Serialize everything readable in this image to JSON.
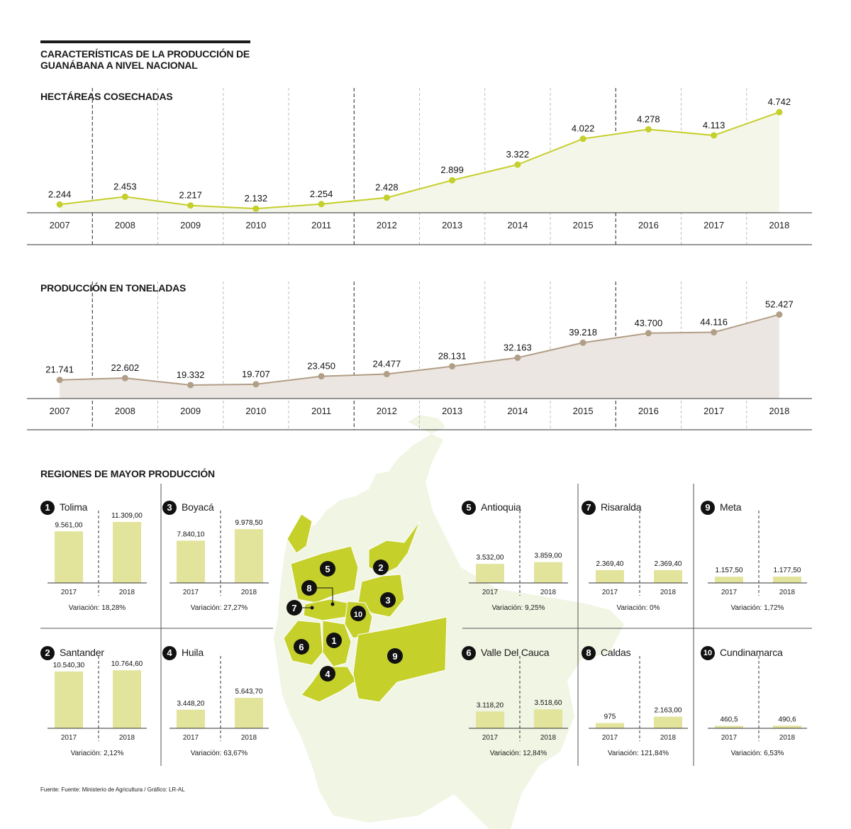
{
  "title": "CARACTERÍSTICAS DE LA PRODUCCIÓN DE GUANÁBANA A NIVEL NACIONAL",
  "source": "Fuente: Fuente: Ministerio de Agricultura / Gráfico: LR-AL",
  "regions_title": "REGIONES DE MAYOR PRODUCCIÓN",
  "colors": {
    "lime": "#c5cf2a",
    "lime_fill": "#f4f6ea",
    "bar": "#e2e49c",
    "brown": "#b19e86",
    "brown_fill": "#ece6e2",
    "map_light": "#f1f5e3",
    "map_bright": "#c5d02b"
  },
  "chart_data": [
    {
      "type": "line",
      "title": "HECTÁREAS COSECHADAS",
      "x": [
        "2007",
        "2008",
        "2009",
        "2010",
        "2011",
        "2012",
        "2013",
        "2014",
        "2015",
        "2016",
        "2017",
        "2018"
      ],
      "values": [
        2244,
        2453,
        2217,
        2132,
        2254,
        2428,
        2899,
        3322,
        4022,
        4278,
        4113,
        4742
      ],
      "labels": [
        "2.244",
        "2.453",
        "2.217",
        "2.132",
        "2.254",
        "2.428",
        "2.899",
        "3.322",
        "4.022",
        "4.278",
        "4.113",
        "4.742"
      ],
      "ylim": [
        2020,
        4860
      ]
    },
    {
      "type": "line",
      "title": "PRODUCCIÓN EN TONELADAS",
      "x": [
        "2007",
        "2008",
        "2009",
        "2010",
        "2011",
        "2012",
        "2013",
        "2014",
        "2015",
        "2016",
        "2017",
        "2018"
      ],
      "values": [
        21741,
        22602,
        19332,
        19707,
        23450,
        24477,
        28131,
        32163,
        39218,
        43700,
        44116,
        52427
      ],
      "labels": [
        "21.741",
        "22.602",
        "19.332",
        "19.707",
        "23.450",
        "24.477",
        "28.131",
        "32.163",
        "39.218",
        "43.700",
        "44.116",
        "52.427"
      ],
      "ylim": [
        13000,
        58600
      ]
    },
    {
      "type": "bar",
      "title": "REGIONES DE MAYOR PRODUCCIÓN",
      "categories": [
        "2017",
        "2018"
      ],
      "series": [
        {
          "rank": "1",
          "name": "Tolima",
          "values": [
            9561.0,
            11309.0
          ],
          "labels": [
            "9.561,00",
            "11.309,00"
          ],
          "variation": "Variación: 18,28%"
        },
        {
          "rank": "2",
          "name": "Santander",
          "values": [
            10540.3,
            10764.6
          ],
          "labels": [
            "10.540,30",
            "10.764,60"
          ],
          "variation": "Variación: 2,12%"
        },
        {
          "rank": "3",
          "name": "Boyacá",
          "values": [
            7840.1,
            9978.5
          ],
          "labels": [
            "7.840,10",
            "9.978,50"
          ],
          "variation": "Variación: 27,27%"
        },
        {
          "rank": "4",
          "name": "Huila",
          "values": [
            3448.2,
            5643.7
          ],
          "labels": [
            "3.448,20",
            "5.643,70"
          ],
          "variation": "Variación: 63,67%"
        },
        {
          "rank": "5",
          "name": "Antioquia",
          "values": [
            3532.0,
            3859.0
          ],
          "labels": [
            "3.532,00",
            "3.859,00"
          ],
          "variation": "Variación: 9,25%"
        },
        {
          "rank": "6",
          "name": "Valle Del Cauca",
          "values": [
            3118.2,
            3518.6
          ],
          "labels": [
            "3.118,20",
            "3.518,60"
          ],
          "variation": "Variación: 12,84%"
        },
        {
          "rank": "7",
          "name": "Risaralda",
          "values": [
            2369.4,
            2369.4
          ],
          "labels": [
            "2.369,40",
            "2.369,40"
          ],
          "variation": "Variación: 0%"
        },
        {
          "rank": "8",
          "name": "Caldas",
          "values": [
            975,
            2163.0
          ],
          "labels": [
            "975",
            "2.163,00"
          ],
          "variation": "Variación: 121,84%"
        },
        {
          "rank": "9",
          "name": "Meta",
          "values": [
            1157.5,
            1177.5
          ],
          "labels": [
            "1.157,50",
            "1.177,50"
          ],
          "variation": "Variación: 1,72%"
        },
        {
          "rank": "10",
          "name": "Cundinamarca",
          "values": [
            460.5,
            490.6
          ],
          "labels": [
            "460,5",
            "490,6"
          ],
          "variation": "Variación: 6,53%"
        }
      ]
    }
  ]
}
